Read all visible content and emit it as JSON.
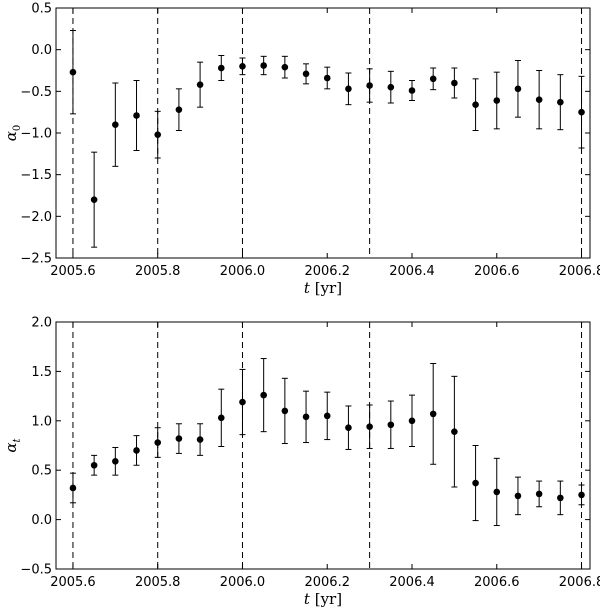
{
  "chart_data": [
    {
      "type": "scatter",
      "title": "",
      "xlabel": "t",
      "xunit": "[yr]",
      "ylabel": "α",
      "ylabel_sub": "0",
      "xlim": [
        2005.56,
        2006.82
      ],
      "ylim": [
        -2.5,
        0.5
      ],
      "xticks": [
        2005.6,
        2005.8,
        2006.0,
        2006.2,
        2006.4,
        2006.6,
        2006.8
      ],
      "xtick_labels": [
        "2005.6",
        "2005.8",
        "2006.0",
        "2006.2",
        "2006.4",
        "2006.6",
        "2006.8"
      ],
      "yticks": [
        -2.5,
        -2.0,
        -1.5,
        -1.0,
        -0.5,
        0.0,
        0.5
      ],
      "ytick_labels": [
        "−2.5",
        "−2.0",
        "−1.5",
        "−1.0",
        "−0.5",
        "0.0",
        "0.5"
      ],
      "vlines": [
        2005.6,
        2005.8,
        2006.0,
        2006.3,
        2006.8
      ],
      "grid": false,
      "legend": "none",
      "points": [
        {
          "x": 2005.6,
          "y": -0.27,
          "err": 0.5
        },
        {
          "x": 2005.65,
          "y": -1.8,
          "err": 0.57
        },
        {
          "x": 2005.7,
          "y": -0.9,
          "err": 0.5
        },
        {
          "x": 2005.75,
          "y": -0.79,
          "err": 0.42
        },
        {
          "x": 2005.8,
          "y": -1.02,
          "err": 0.28
        },
        {
          "x": 2005.85,
          "y": -0.72,
          "err": 0.25
        },
        {
          "x": 2005.9,
          "y": -0.42,
          "err": 0.27
        },
        {
          "x": 2005.95,
          "y": -0.22,
          "err": 0.15
        },
        {
          "x": 2006.0,
          "y": -0.2,
          "err": 0.1
        },
        {
          "x": 2006.05,
          "y": -0.19,
          "err": 0.11
        },
        {
          "x": 2006.1,
          "y": -0.21,
          "err": 0.13
        },
        {
          "x": 2006.15,
          "y": -0.29,
          "err": 0.12
        },
        {
          "x": 2006.2,
          "y": -0.34,
          "err": 0.13
        },
        {
          "x": 2006.25,
          "y": -0.47,
          "err": 0.19
        },
        {
          "x": 2006.3,
          "y": -0.43,
          "err": 0.2
        },
        {
          "x": 2006.35,
          "y": -0.45,
          "err": 0.19
        },
        {
          "x": 2006.4,
          "y": -0.49,
          "err": 0.12
        },
        {
          "x": 2006.45,
          "y": -0.35,
          "err": 0.13
        },
        {
          "x": 2006.5,
          "y": -0.4,
          "err": 0.18
        },
        {
          "x": 2006.55,
          "y": -0.66,
          "err": 0.31
        },
        {
          "x": 2006.6,
          "y": -0.61,
          "err": 0.34
        },
        {
          "x": 2006.65,
          "y": -0.47,
          "err": 0.34
        },
        {
          "x": 2006.7,
          "y": -0.6,
          "err": 0.35
        },
        {
          "x": 2006.75,
          "y": -0.63,
          "err": 0.33
        },
        {
          "x": 2006.8,
          "y": -0.75,
          "err": 0.43
        }
      ]
    },
    {
      "type": "scatter",
      "title": "",
      "xlabel": "t",
      "xunit": "[yr]",
      "ylabel": "α",
      "ylabel_sub": "t",
      "xlim": [
        2005.56,
        2006.82
      ],
      "ylim": [
        -0.5,
        2.0
      ],
      "xticks": [
        2005.6,
        2005.8,
        2006.0,
        2006.2,
        2006.4,
        2006.6,
        2006.8
      ],
      "xtick_labels": [
        "2005.6",
        "2005.8",
        "2006.0",
        "2006.2",
        "2006.4",
        "2006.6",
        "2006.8"
      ],
      "yticks": [
        -0.5,
        0.0,
        0.5,
        1.0,
        1.5,
        2.0
      ],
      "ytick_labels": [
        "−0.5",
        "0.0",
        "0.5",
        "1.0",
        "1.5",
        "2.0"
      ],
      "vlines": [
        2005.6,
        2005.8,
        2006.0,
        2006.3,
        2006.8
      ],
      "grid": false,
      "legend": "none",
      "points": [
        {
          "x": 2005.6,
          "y": 0.32,
          "err": 0.15
        },
        {
          "x": 2005.65,
          "y": 0.55,
          "err": 0.1
        },
        {
          "x": 2005.7,
          "y": 0.59,
          "err": 0.14
        },
        {
          "x": 2005.75,
          "y": 0.7,
          "err": 0.15
        },
        {
          "x": 2005.8,
          "y": 0.78,
          "err": 0.15
        },
        {
          "x": 2005.85,
          "y": 0.82,
          "err": 0.15
        },
        {
          "x": 2005.9,
          "y": 0.81,
          "err": 0.16
        },
        {
          "x": 2005.95,
          "y": 1.03,
          "err": 0.29
        },
        {
          "x": 2006.0,
          "y": 1.19,
          "err": 0.33
        },
        {
          "x": 2006.05,
          "y": 1.26,
          "err": 0.37
        },
        {
          "x": 2006.1,
          "y": 1.1,
          "err": 0.33
        },
        {
          "x": 2006.15,
          "y": 1.04,
          "err": 0.26
        },
        {
          "x": 2006.2,
          "y": 1.05,
          "err": 0.24
        },
        {
          "x": 2006.25,
          "y": 0.93,
          "err": 0.22
        },
        {
          "x": 2006.3,
          "y": 0.94,
          "err": 0.22
        },
        {
          "x": 2006.35,
          "y": 0.96,
          "err": 0.24
        },
        {
          "x": 2006.4,
          "y": 1.0,
          "err": 0.26
        },
        {
          "x": 2006.45,
          "y": 1.07,
          "err": 0.51
        },
        {
          "x": 2006.5,
          "y": 0.89,
          "err": 0.56
        },
        {
          "x": 2006.55,
          "y": 0.37,
          "err": 0.38
        },
        {
          "x": 2006.6,
          "y": 0.28,
          "err": 0.34
        },
        {
          "x": 2006.65,
          "y": 0.24,
          "err": 0.19
        },
        {
          "x": 2006.7,
          "y": 0.26,
          "err": 0.13
        },
        {
          "x": 2006.75,
          "y": 0.22,
          "err": 0.17
        },
        {
          "x": 2006.8,
          "y": 0.25,
          "err": 0.1
        }
      ]
    }
  ]
}
